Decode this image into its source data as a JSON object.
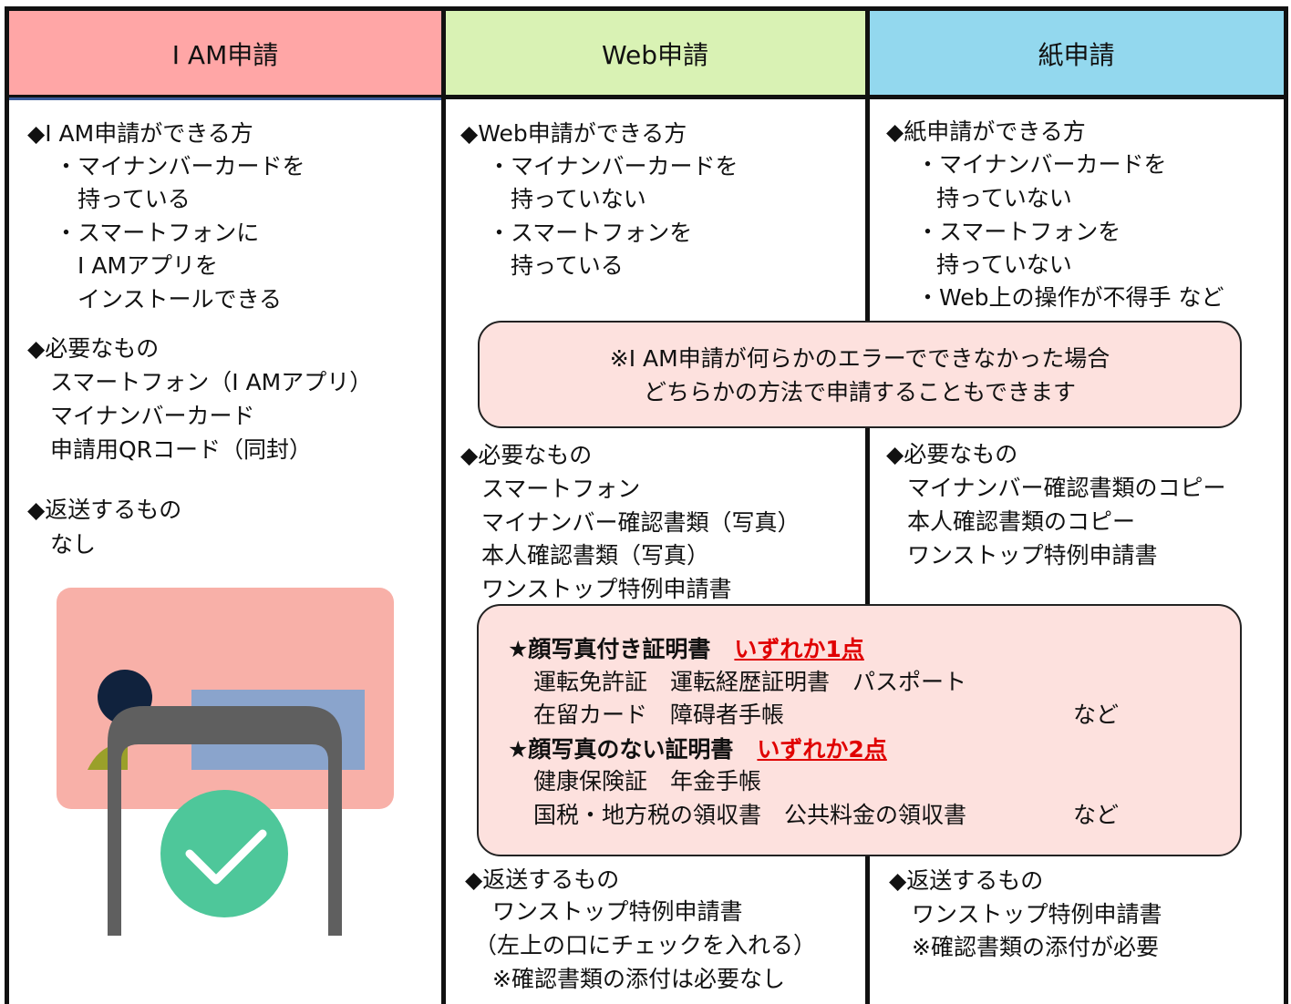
{
  "columns": [
    {
      "header": "I AM申請",
      "lines": [
        "◆I AM申請ができる方",
        "・マイナンバーカードを",
        "持っている",
        "・スマートフォンに",
        "I AMアプリを",
        "インストールできる",
        "◆必要なもの",
        "スマートフォン（I AMアプリ）",
        "マイナンバーカード",
        "申請用QRコード（同封）",
        "◆返送するもの",
        "なし"
      ]
    },
    {
      "header": "Web申請",
      "lines": [
        "◆Web申請ができる方",
        "・マイナンバーカードを",
        "持っていない",
        "・スマートフォンを",
        "持っている",
        "◆必要なもの",
        "スマートフォン",
        "マイナンバー確認書類（写真）",
        "本人確認書類（写真）",
        "ワンストップ特例申請書",
        "◆返送するもの",
        "ワンストップ特例申請書",
        "（左上の口にチェックを入れる）",
        "※確認書類の添付は必要なし"
      ]
    },
    {
      "header": "紙申請",
      "lines": [
        "◆紙申請ができる方",
        "・マイナンバーカードを",
        "持っていない",
        "・スマートフォンを",
        "持っていない",
        "・Web上の操作が不得手 など",
        "◆必要なもの",
        "マイナンバー確認書類のコピー",
        "本人確認書類のコピー",
        "ワンストップ特例申請書",
        "◆返送するもの",
        "ワンストップ特例申請書",
        "※確認書類の添付が必要"
      ]
    }
  ],
  "note": {
    "lines": [
      "※I AM申請が何らかのエラーでできなかった場合",
      "どちらかの方法で申請することもできます"
    ]
  },
  "id_box": {
    "lines": [
      {
        "text": "★顔写真付き証明書",
        "highlight": "いずれか1点"
      },
      {
        "text": "運転免許証　運転経歴証明書　パスポート"
      },
      {
        "text": "在留カード　障碍者手帳",
        "suffix": "など"
      },
      {
        "text": "★顔写真のない証明書",
        "highlight": "いずれか2点"
      },
      {
        "text": "健康保険証　年金手帳"
      },
      {
        "text": "国税・地方税の領収書　公共料金の領収書",
        "suffix": "など"
      }
    ]
  }
}
